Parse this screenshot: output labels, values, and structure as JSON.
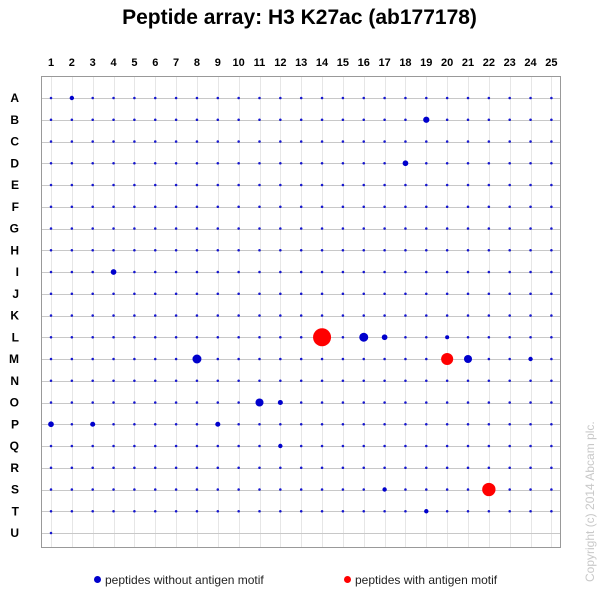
{
  "chart_data": {
    "type": "scatter",
    "title": "Peptide array: H3 K27ac (ab177178)",
    "xlabel": "",
    "ylabel": "",
    "columns": [
      "1",
      "2",
      "3",
      "4",
      "5",
      "6",
      "7",
      "8",
      "9",
      "10",
      "11",
      "12",
      "13",
      "14",
      "15",
      "16",
      "17",
      "18",
      "19",
      "20",
      "21",
      "22",
      "23",
      "24",
      "25"
    ],
    "rows": [
      "A",
      "B",
      "C",
      "D",
      "E",
      "F",
      "G",
      "H",
      "I",
      "J",
      "K",
      "L",
      "M",
      "N",
      "O",
      "P",
      "Q",
      "R",
      "S",
      "T",
      "U"
    ],
    "grid": true,
    "legend_position": "bottom",
    "default_signal": 0.02,
    "series": [
      {
        "name": "peptides without antigen motif",
        "color": "#0000cc",
        "points": [
          {
            "col": 2,
            "row": "A",
            "value": 0.06
          },
          {
            "col": 19,
            "row": "B",
            "value": 0.12
          },
          {
            "col": 18,
            "row": "D",
            "value": 0.1
          },
          {
            "col": 4,
            "row": "I",
            "value": 0.1
          },
          {
            "col": 16,
            "row": "L",
            "value": 0.25
          },
          {
            "col": 17,
            "row": "L",
            "value": 0.1
          },
          {
            "col": 20,
            "row": "L",
            "value": 0.05
          },
          {
            "col": 8,
            "row": "M",
            "value": 0.25
          },
          {
            "col": 21,
            "row": "M",
            "value": 0.2
          },
          {
            "col": 24,
            "row": "M",
            "value": 0.06
          },
          {
            "col": 11,
            "row": "O",
            "value": 0.2
          },
          {
            "col": 12,
            "row": "O",
            "value": 0.08
          },
          {
            "col": 1,
            "row": "P",
            "value": 0.1
          },
          {
            "col": 3,
            "row": "P",
            "value": 0.08
          },
          {
            "col": 9,
            "row": "P",
            "value": 0.08
          },
          {
            "col": 12,
            "row": "Q",
            "value": 0.06
          },
          {
            "col": 17,
            "row": "S",
            "value": 0.06
          },
          {
            "col": 19,
            "row": "T",
            "value": 0.06
          }
        ]
      },
      {
        "name": "peptides with antigen motif",
        "color": "#ff0000",
        "points": [
          {
            "col": 14,
            "row": "L",
            "value": 1.0
          },
          {
            "col": 20,
            "row": "M",
            "value": 0.45
          },
          {
            "col": 22,
            "row": "S",
            "value": 0.55
          }
        ]
      }
    ]
  },
  "copyright": "Copyright (c) 2014 Abcam plc."
}
